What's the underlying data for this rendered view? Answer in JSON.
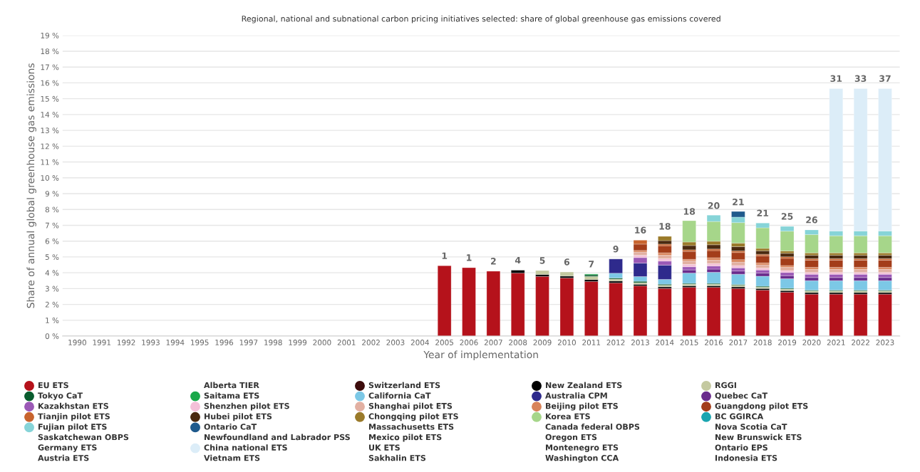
{
  "chart_data": {
    "type": "bar",
    "title": "Regional, national and subnational carbon pricing initiatives selected: share of global greenhouse gas emissions covered",
    "xlabel": "Year of implementation",
    "ylabel": "Share of annual global greenhouse gas emissions",
    "categories": [
      "1990",
      "1991",
      "1992",
      "1993",
      "1994",
      "1995",
      "1996",
      "1997",
      "1998",
      "1999",
      "2000",
      "2001",
      "2002",
      "2003",
      "2004",
      "2005",
      "2006",
      "2007",
      "2008",
      "2009",
      "2010",
      "2011",
      "2012",
      "2013",
      "2014",
      "2015",
      "2016",
      "2017",
      "2018",
      "2019",
      "2020",
      "2021",
      "2022",
      "2023"
    ],
    "stacked": true,
    "grid": "y",
    "legend": "bottom",
    "ylim": [
      0,
      19
    ],
    "yticks": [
      {
        "value": 0,
        "label": "0 %"
      },
      {
        "value": 1,
        "label": "1 %"
      },
      {
        "value": 2,
        "label": "2 %"
      },
      {
        "value": 3,
        "label": "3 %"
      },
      {
        "value": 4,
        "label": "4 %"
      },
      {
        "value": 5,
        "label": "5 %"
      },
      {
        "value": 6,
        "label": "6 %"
      },
      {
        "value": 7,
        "label": "7 %"
      },
      {
        "value": 8,
        "label": "8 %"
      },
      {
        "value": 9,
        "label": "9 %"
      },
      {
        "value": 10,
        "label": "10 %"
      },
      {
        "value": 11,
        "label": "11 %"
      },
      {
        "value": 12,
        "label": "12 %"
      },
      {
        "value": 13,
        "label": "13 %"
      },
      {
        "value": 14,
        "label": "14 %"
      },
      {
        "value": 15,
        "label": "15 %"
      },
      {
        "value": 16,
        "label": "16 %"
      },
      {
        "value": 17,
        "label": "17 %"
      },
      {
        "value": 18,
        "label": "18 %"
      },
      {
        "value": 19,
        "label": "19 %"
      }
    ],
    "annotations": [
      {
        "text": "1",
        "x": "2005",
        "y": 4.44
      },
      {
        "text": "1",
        "x": "2006",
        "y": 4.32
      },
      {
        "text": "2",
        "x": "2007",
        "y": 4.1
      },
      {
        "text": "4",
        "x": "2008",
        "y": 4.16
      },
      {
        "text": "5",
        "x": "2009",
        "y": 4.14
      },
      {
        "text": "6",
        "x": "2010",
        "y": 4.05
      },
      {
        "text": "7",
        "x": "2011",
        "y": 3.92
      },
      {
        "text": "9",
        "x": "2012",
        "y": 4.87
      },
      {
        "text": "16",
        "x": "2013",
        "y": 6.06
      },
      {
        "text": "18",
        "x": "2014",
        "y": 6.3
      },
      {
        "text": "18",
        "x": "2015",
        "y": 7.24
      },
      {
        "text": "20",
        "x": "2016",
        "y": 7.61
      },
      {
        "text": "21",
        "x": "2017",
        "y": 7.84
      },
      {
        "text": "21",
        "x": "2018",
        "y": 7.14
      },
      {
        "text": "25",
        "x": "2019",
        "y": 6.93
      },
      {
        "text": "26",
        "x": "2020",
        "y": 6.71
      },
      {
        "text": "31",
        "x": "2021",
        "y": 15.64
      },
      {
        "text": "33",
        "x": "2022",
        "y": 15.64
      },
      {
        "text": "37",
        "x": "2023",
        "y": 15.64
      }
    ],
    "series": [
      {
        "name": "EU ETS",
        "color": "#b5121b",
        "values": [
          null,
          null,
          null,
          null,
          null,
          null,
          null,
          null,
          null,
          null,
          null,
          null,
          null,
          null,
          null,
          4.44,
          4.32,
          4.1,
          3.98,
          3.77,
          3.67,
          3.45,
          3.36,
          3.17,
          3.01,
          3.08,
          3.08,
          3.01,
          2.9,
          2.77,
          2.65,
          2.65,
          2.65,
          2.65
        ]
      },
      {
        "name": "Alberta TIER",
        "values": [
          null,
          null,
          null,
          null,
          null,
          null,
          null,
          null,
          null,
          null,
          null,
          null,
          null,
          null,
          null,
          null,
          null,
          null,
          null,
          null,
          null,
          null,
          null,
          null,
          null,
          null,
          null,
          null,
          null,
          null,
          null,
          null,
          null,
          null
        ]
      },
      {
        "name": "Switzerland ETS",
        "color": "#3d0c0c",
        "values": [
          null,
          null,
          null,
          null,
          null,
          null,
          null,
          null,
          null,
          null,
          null,
          null,
          null,
          null,
          null,
          null,
          null,
          null,
          null,
          null,
          null,
          null,
          null,
          null,
          null,
          null,
          null,
          null,
          null,
          null,
          null,
          null,
          null,
          null
        ]
      },
      {
        "name": "New Zealand ETS",
        "color": "#000000",
        "values": [
          null,
          null,
          null,
          null,
          null,
          null,
          null,
          null,
          null,
          null,
          null,
          null,
          null,
          null,
          null,
          null,
          null,
          null,
          0.18,
          0.12,
          0.12,
          0.12,
          0.12,
          0.1,
          0.1,
          0.1,
          0.1,
          0.1,
          0.1,
          0.1,
          0.1,
          0.1,
          0.1,
          0.1
        ]
      },
      {
        "name": "RGGI",
        "color": "#c4c9a0",
        "values": [
          null,
          null,
          null,
          null,
          null,
          null,
          null,
          null,
          null,
          null,
          null,
          null,
          null,
          null,
          null,
          null,
          null,
          null,
          null,
          0.25,
          0.26,
          0.2,
          0.12,
          0.1,
          0.1,
          0.1,
          0.1,
          0.1,
          0.1,
          0.1,
          0.1,
          0.1,
          0.1,
          0.1
        ]
      },
      {
        "name": "Tokyo CaT",
        "color": "#0a5c2e",
        "values": [
          null,
          null,
          null,
          null,
          null,
          null,
          null,
          null,
          null,
          null,
          null,
          null,
          null,
          null,
          null,
          null,
          null,
          null,
          null,
          null,
          null,
          0.1,
          0.07,
          0.09,
          0.07,
          0.05,
          0.05,
          0.05,
          0.05,
          0.05,
          0.05,
          0.05,
          0.05,
          0.05
        ]
      },
      {
        "name": "Saitama ETS",
        "color": "#1aa84a",
        "values": [
          null,
          null,
          null,
          null,
          null,
          null,
          null,
          null,
          null,
          null,
          null,
          null,
          null,
          null,
          null,
          null,
          null,
          null,
          null,
          null,
          null,
          0.05,
          null,
          null,
          null,
          null,
          null,
          null,
          null,
          null,
          null,
          null,
          null,
          null
        ]
      },
      {
        "name": "California CaT",
        "color": "#7cc8e6",
        "values": [
          null,
          null,
          null,
          null,
          null,
          null,
          null,
          null,
          null,
          null,
          null,
          null,
          null,
          null,
          null,
          null,
          null,
          null,
          null,
          null,
          null,
          null,
          0.3,
          0.3,
          0.3,
          0.65,
          0.7,
          0.65,
          0.63,
          0.6,
          0.6,
          0.6,
          0.6,
          0.6
        ]
      },
      {
        "name": "Australia CPM",
        "color": "#2e2a8c",
        "values": [
          null,
          null,
          null,
          null,
          null,
          null,
          null,
          null,
          null,
          null,
          null,
          null,
          null,
          null,
          null,
          null,
          null,
          null,
          null,
          null,
          null,
          null,
          0.9,
          0.85,
          0.9,
          null,
          null,
          null,
          null,
          null,
          null,
          null,
          null,
          null
        ]
      },
      {
        "name": "Quebec CaT",
        "color": "#6a2c8c",
        "values": [
          null,
          null,
          null,
          null,
          null,
          null,
          null,
          null,
          null,
          null,
          null,
          null,
          null,
          null,
          null,
          null,
          null,
          null,
          null,
          null,
          null,
          null,
          null,
          null,
          null,
          0.2,
          0.2,
          0.2,
          0.2,
          0.2,
          0.2,
          0.2,
          0.2,
          0.2
        ]
      },
      {
        "name": "Kazakhstan ETS",
        "color": "#9b59b6",
        "values": [
          null,
          null,
          null,
          null,
          null,
          null,
          null,
          null,
          null,
          null,
          null,
          null,
          null,
          null,
          null,
          null,
          null,
          null,
          null,
          null,
          null,
          null,
          null,
          0.35,
          0.26,
          0.2,
          0.2,
          0.2,
          0.2,
          0.2,
          0.2,
          0.2,
          0.2,
          0.2
        ]
      },
      {
        "name": "Shenzhen pilot ETS",
        "color": "#f4c0d8",
        "values": [
          null,
          null,
          null,
          null,
          null,
          null,
          null,
          null,
          null,
          null,
          null,
          null,
          null,
          null,
          null,
          null,
          null,
          null,
          null,
          null,
          null,
          null,
          null,
          0.15,
          0.15,
          0.15,
          0.15,
          0.15,
          0.12,
          0.12,
          0.12,
          0.12,
          0.12,
          0.12
        ]
      },
      {
        "name": "Shanghai pilot ETS",
        "color": "#e2b0a2",
        "values": [
          null,
          null,
          null,
          null,
          null,
          null,
          null,
          null,
          null,
          null,
          null,
          null,
          null,
          null,
          null,
          null,
          null,
          null,
          null,
          null,
          null,
          null,
          null,
          0.2,
          0.22,
          0.22,
          0.22,
          0.22,
          0.2,
          0.2,
          0.2,
          0.2,
          0.2,
          0.2
        ]
      },
      {
        "name": "Beijing pilot ETS",
        "color": "#d8835a",
        "values": [
          null,
          null,
          null,
          null,
          null,
          null,
          null,
          null,
          null,
          null,
          null,
          null,
          null,
          null,
          null,
          null,
          null,
          null,
          null,
          null,
          null,
          null,
          null,
          0.1,
          0.15,
          0.1,
          0.15,
          0.15,
          0.12,
          0.12,
          0.12,
          0.12,
          0.12,
          0.12
        ]
      },
      {
        "name": "Guangdong pilot ETS",
        "color": "#a33d1a",
        "values": [
          null,
          null,
          null,
          null,
          null,
          null,
          null,
          null,
          null,
          null,
          null,
          null,
          null,
          null,
          null,
          null,
          null,
          null,
          null,
          null,
          null,
          null,
          null,
          0.4,
          0.45,
          0.5,
          0.45,
          0.45,
          0.45,
          0.45,
          0.45,
          0.45,
          0.45,
          0.45
        ]
      },
      {
        "name": "Tianjin pilot ETS",
        "color": "#c8642e",
        "values": [
          null,
          null,
          null,
          null,
          null,
          null,
          null,
          null,
          null,
          null,
          null,
          null,
          null,
          null,
          null,
          null,
          null,
          null,
          null,
          null,
          null,
          null,
          null,
          0.25,
          0.1,
          0.1,
          0.1,
          0.1,
          0.1,
          0.1,
          0.1,
          0.1,
          0.1,
          0.1
        ]
      },
      {
        "name": "Hubei pilot ETS",
        "color": "#4a2a10",
        "values": [
          null,
          null,
          null,
          null,
          null,
          null,
          null,
          null,
          null,
          null,
          null,
          null,
          null,
          null,
          null,
          null,
          null,
          null,
          null,
          null,
          null,
          null,
          null,
          null,
          0.22,
          0.27,
          0.27,
          0.27,
          0.22,
          0.22,
          0.22,
          0.22,
          0.22,
          0.22
        ]
      },
      {
        "name": "Chongqing pilot ETS",
        "color": "#9a7a2a",
        "values": [
          null,
          null,
          null,
          null,
          null,
          null,
          null,
          null,
          null,
          null,
          null,
          null,
          null,
          null,
          null,
          null,
          null,
          null,
          null,
          null,
          null,
          null,
          null,
          null,
          0.27,
          0.22,
          0.22,
          0.22,
          0.15,
          0.15,
          0.15,
          0.15,
          0.15,
          0.15
        ]
      },
      {
        "name": "Korea ETS",
        "color": "#a6d68a",
        "values": [
          null,
          null,
          null,
          null,
          null,
          null,
          null,
          null,
          null,
          null,
          null,
          null,
          null,
          null,
          null,
          null,
          null,
          null,
          null,
          null,
          null,
          null,
          null,
          null,
          null,
          1.35,
          1.25,
          1.3,
          1.3,
          1.25,
          1.15,
          1.08,
          1.08,
          1.08
        ]
      },
      {
        "name": "BC GGIRCA",
        "color": "#1aa5b0",
        "values": [
          null,
          null,
          null,
          null,
          null,
          null,
          null,
          null,
          null,
          null,
          null,
          null,
          null,
          null,
          null,
          null,
          null,
          null,
          null,
          null,
          null,
          null,
          null,
          null,
          null,
          null,
          null,
          null,
          null,
          null,
          null,
          null,
          null,
          null
        ]
      },
      {
        "name": "Fujian pilot ETS",
        "color": "#86d4d8",
        "values": [
          null,
          null,
          null,
          null,
          null,
          null,
          null,
          null,
          null,
          null,
          null,
          null,
          null,
          null,
          null,
          null,
          null,
          null,
          null,
          null,
          null,
          null,
          null,
          null,
          null,
          null,
          0.4,
          0.35,
          0.3,
          0.3,
          0.3,
          0.3,
          0.3,
          0.3
        ]
      },
      {
        "name": "Ontario CaT",
        "color": "#1f5a8c",
        "values": [
          null,
          null,
          null,
          null,
          null,
          null,
          null,
          null,
          null,
          null,
          null,
          null,
          null,
          null,
          null,
          null,
          null,
          null,
          null,
          null,
          null,
          null,
          null,
          null,
          null,
          null,
          null,
          0.35,
          null,
          null,
          null,
          null,
          null,
          null
        ]
      },
      {
        "name": "Massachusetts ETS",
        "values": [
          null,
          null,
          null,
          null,
          null,
          null,
          null,
          null,
          null,
          null,
          null,
          null,
          null,
          null,
          null,
          null,
          null,
          null,
          null,
          null,
          null,
          null,
          null,
          null,
          null,
          null,
          null,
          null,
          null,
          null,
          null,
          null,
          null,
          null
        ]
      },
      {
        "name": "Canada federal OBPS",
        "values": [
          null,
          null,
          null,
          null,
          null,
          null,
          null,
          null,
          null,
          null,
          null,
          null,
          null,
          null,
          null,
          null,
          null,
          null,
          null,
          null,
          null,
          null,
          null,
          null,
          null,
          null,
          null,
          null,
          null,
          null,
          null,
          null,
          null,
          null
        ]
      },
      {
        "name": "Nova Scotia CaT",
        "values": [
          null,
          null,
          null,
          null,
          null,
          null,
          null,
          null,
          null,
          null,
          null,
          null,
          null,
          null,
          null,
          null,
          null,
          null,
          null,
          null,
          null,
          null,
          null,
          null,
          null,
          null,
          null,
          null,
          null,
          null,
          null,
          null,
          null,
          null
        ]
      },
      {
        "name": "Saskatchewan OBPS",
        "values": [
          null,
          null,
          null,
          null,
          null,
          null,
          null,
          null,
          null,
          null,
          null,
          null,
          null,
          null,
          null,
          null,
          null,
          null,
          null,
          null,
          null,
          null,
          null,
          null,
          null,
          null,
          null,
          null,
          null,
          null,
          null,
          null,
          null,
          null
        ]
      },
      {
        "name": "Newfoundland and Labrador PSS",
        "values": [
          null,
          null,
          null,
          null,
          null,
          null,
          null,
          null,
          null,
          null,
          null,
          null,
          null,
          null,
          null,
          null,
          null,
          null,
          null,
          null,
          null,
          null,
          null,
          null,
          null,
          null,
          null,
          null,
          null,
          null,
          null,
          null,
          null,
          null
        ]
      },
      {
        "name": "Mexico pilot ETS",
        "values": [
          null,
          null,
          null,
          null,
          null,
          null,
          null,
          null,
          null,
          null,
          null,
          null,
          null,
          null,
          null,
          null,
          null,
          null,
          null,
          null,
          null,
          null,
          null,
          null,
          null,
          null,
          null,
          null,
          null,
          null,
          null,
          null,
          null,
          null
        ]
      },
      {
        "name": "Oregon ETS",
        "values": [
          null,
          null,
          null,
          null,
          null,
          null,
          null,
          null,
          null,
          null,
          null,
          null,
          null,
          null,
          null,
          null,
          null,
          null,
          null,
          null,
          null,
          null,
          null,
          null,
          null,
          null,
          null,
          null,
          null,
          null,
          null,
          null,
          null,
          null
        ]
      },
      {
        "name": "New Brunswick ETS",
        "values": [
          null,
          null,
          null,
          null,
          null,
          null,
          null,
          null,
          null,
          null,
          null,
          null,
          null,
          null,
          null,
          null,
          null,
          null,
          null,
          null,
          null,
          null,
          null,
          null,
          null,
          null,
          null,
          null,
          null,
          null,
          null,
          null,
          null,
          null
        ]
      },
      {
        "name": "Germany ETS",
        "values": [
          null,
          null,
          null,
          null,
          null,
          null,
          null,
          null,
          null,
          null,
          null,
          null,
          null,
          null,
          null,
          null,
          null,
          null,
          null,
          null,
          null,
          null,
          null,
          null,
          null,
          null,
          null,
          null,
          null,
          null,
          null,
          null,
          null,
          null
        ]
      },
      {
        "name": "China national ETS",
        "color": "#dcedf8",
        "values": [
          null,
          null,
          null,
          null,
          null,
          null,
          null,
          null,
          null,
          null,
          null,
          null,
          null,
          null,
          null,
          null,
          null,
          null,
          null,
          null,
          null,
          null,
          null,
          null,
          null,
          null,
          null,
          null,
          null,
          null,
          null,
          9.0,
          9.0,
          9.0
        ]
      },
      {
        "name": "UK ETS",
        "values": [
          null,
          null,
          null,
          null,
          null,
          null,
          null,
          null,
          null,
          null,
          null,
          null,
          null,
          null,
          null,
          null,
          null,
          null,
          null,
          null,
          null,
          null,
          null,
          null,
          null,
          null,
          null,
          null,
          null,
          null,
          null,
          null,
          null,
          null
        ]
      },
      {
        "name": "Montenegro ETS",
        "values": [
          null,
          null,
          null,
          null,
          null,
          null,
          null,
          null,
          null,
          null,
          null,
          null,
          null,
          null,
          null,
          null,
          null,
          null,
          null,
          null,
          null,
          null,
          null,
          null,
          null,
          null,
          null,
          null,
          null,
          null,
          null,
          null,
          null,
          null
        ]
      },
      {
        "name": "Ontario EPS",
        "values": [
          null,
          null,
          null,
          null,
          null,
          null,
          null,
          null,
          null,
          null,
          null,
          null,
          null,
          null,
          null,
          null,
          null,
          null,
          null,
          null,
          null,
          null,
          null,
          null,
          null,
          null,
          null,
          null,
          null,
          null,
          null,
          null,
          null,
          null
        ]
      },
      {
        "name": "Austria ETS",
        "values": [
          null,
          null,
          null,
          null,
          null,
          null,
          null,
          null,
          null,
          null,
          null,
          null,
          null,
          null,
          null,
          null,
          null,
          null,
          null,
          null,
          null,
          null,
          null,
          null,
          null,
          null,
          null,
          null,
          null,
          null,
          null,
          null,
          null,
          null
        ]
      },
      {
        "name": "Vietnam ETS",
        "values": [
          null,
          null,
          null,
          null,
          null,
          null,
          null,
          null,
          null,
          null,
          null,
          null,
          null,
          null,
          null,
          null,
          null,
          null,
          null,
          null,
          null,
          null,
          null,
          null,
          null,
          null,
          null,
          null,
          null,
          null,
          null,
          null,
          null,
          null
        ]
      },
      {
        "name": "Sakhalin ETS",
        "values": [
          null,
          null,
          null,
          null,
          null,
          null,
          null,
          null,
          null,
          null,
          null,
          null,
          null,
          null,
          null,
          null,
          null,
          null,
          null,
          null,
          null,
          null,
          null,
          null,
          null,
          null,
          null,
          null,
          null,
          null,
          null,
          null,
          null,
          null
        ]
      },
      {
        "name": "Washington CCA",
        "values": [
          null,
          null,
          null,
          null,
          null,
          null,
          null,
          null,
          null,
          null,
          null,
          null,
          null,
          null,
          null,
          null,
          null,
          null,
          null,
          null,
          null,
          null,
          null,
          null,
          null,
          null,
          null,
          null,
          null,
          null,
          null,
          null,
          null,
          null
        ]
      },
      {
        "name": "Indonesia ETS",
        "values": [
          null,
          null,
          null,
          null,
          null,
          null,
          null,
          null,
          null,
          null,
          null,
          null,
          null,
          null,
          null,
          null,
          null,
          null,
          null,
          null,
          null,
          null,
          null,
          null,
          null,
          null,
          null,
          null,
          null,
          null,
          null,
          null,
          null,
          null
        ]
      }
    ]
  }
}
